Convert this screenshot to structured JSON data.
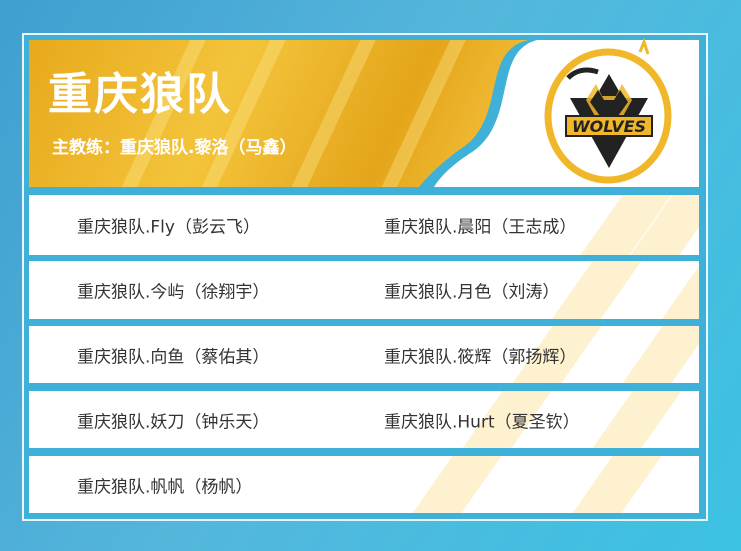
{
  "team": {
    "name": "重庆狼队",
    "coach": "主教练：重庆狼队.黎洛（马鑫）",
    "logo_text": "WOLVES"
  },
  "colors": {
    "accent": "#f0b72a",
    "background": "#3fb0d8"
  },
  "players": [
    [
      "重庆狼队.Fly（彭云飞）",
      "重庆狼队.晨阳（王志成）"
    ],
    [
      "重庆狼队.今屿（徐翔宇）",
      "重庆狼队.月色（刘涛）"
    ],
    [
      "重庆狼队.向鱼（蔡佑其）",
      "重庆狼队.筱辉（郭扬辉）"
    ],
    [
      "重庆狼队.妖刀（钟乐天）",
      "重庆狼队.Hurt（夏圣钦）"
    ],
    [
      "重庆狼队.帆帆（杨帆）",
      ""
    ]
  ]
}
